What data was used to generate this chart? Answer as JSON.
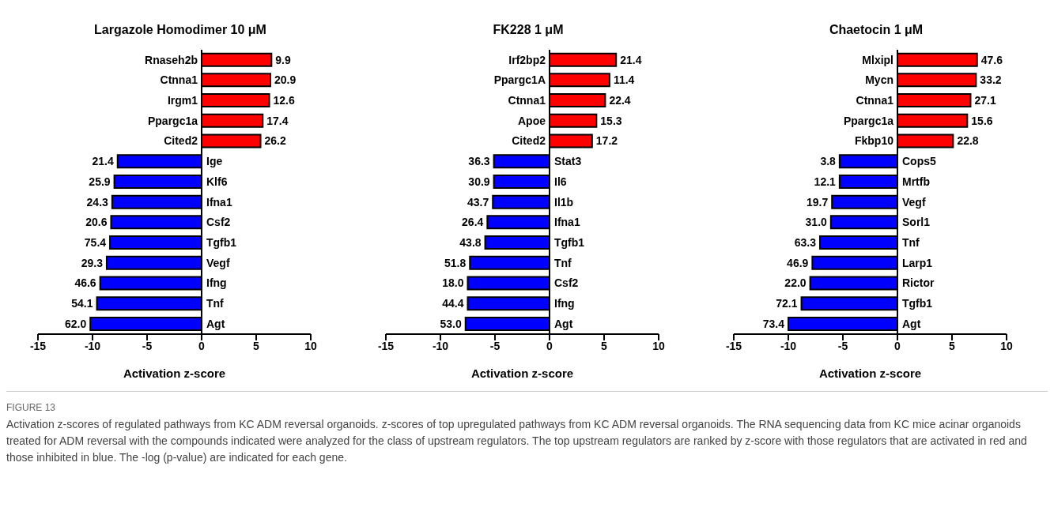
{
  "chart_data": [
    {
      "type": "bar",
      "orientation": "horizontal",
      "title": "Largazole Homodimer 10 μM",
      "xlabel": "Activation z-score",
      "xlim": [
        -15,
        10
      ],
      "xticks": [
        -15,
        -10,
        -5,
        0,
        5,
        10
      ],
      "categories": [
        "Rnaseh2b",
        "Ctnna1",
        "Irgm1",
        "Ppargc1a",
        "Cited2",
        "Ige",
        "Klf6",
        "Ifna1",
        "Csf2",
        "Tgfb1",
        "Vegf",
        "Ifng",
        "Tnf",
        "Agt"
      ],
      "values": [
        6.4,
        6.3,
        6.2,
        5.6,
        5.4,
        -7.7,
        -8.0,
        -8.2,
        -8.3,
        -8.4,
        -8.7,
        -9.3,
        -9.6,
        -10.2
      ],
      "colors": [
        "#ff0000",
        "#ff0000",
        "#ff0000",
        "#ff0000",
        "#ff0000",
        "#0000ff",
        "#0000ff",
        "#0000ff",
        "#0000ff",
        "#0000ff",
        "#0000ff",
        "#0000ff",
        "#0000ff",
        "#0000ff"
      ],
      "annotations": [
        "FIGURE 13",
        "Activation z-scores of regulated pathways from KC ADM reversal organoids. z-scores of top upregulated pathways from KC ADM reversal organoids. The RNA sequencing data from KC mice acinar organoids treated for ADM reversal with the compounds indicated were analyzed for the class of upstream regulators. The top upstream regulators are ranked by z-score with those regulators that are activated in red and those inhibited in blue. The -log (p-value) are indicated for each gene.",
        {
          "text": "9.9",
          "x": 6.4,
          "y": "Rnaseh2b"
        },
        {
          "text": "20.9",
          "x": 6.3,
          "y": "Ctnna1"
        },
        {
          "text": "12.6",
          "x": 6.2,
          "y": "Irgm1"
        },
        {
          "text": "17.4",
          "x": 5.6,
          "y": "Ppargc1a"
        },
        {
          "text": "26.2",
          "x": 5.4,
          "y": "Cited2"
        },
        {
          "text": "21.4",
          "x": -7.7,
          "y": "Ige"
        },
        {
          "text": "25.9",
          "x": -8.0,
          "y": "Klf6"
        },
        {
          "text": "24.3",
          "x": -8.2,
          "y": "Ifna1"
        },
        {
          "text": "20.6",
          "x": -8.3,
          "y": "Csf2"
        },
        {
          "text": "75.4",
          "x": -8.4,
          "y": "Tgfb1"
        },
        {
          "text": "29.3",
          "x": -8.7,
          "y": "Vegf"
        },
        {
          "text": "46.6",
          "x": -9.3,
          "y": "Ifng"
        },
        {
          "text": "54.1",
          "x": -9.6,
          "y": "Tnf"
        },
        {
          "text": "62.0",
          "x": -10.2,
          "y": "Agt"
        }
      ]
    },
    {
      "type": "bar",
      "orientation": "horizontal",
      "title": "FK228 1 μM",
      "xlabel": "Activation z-score",
      "xlim": [
        -15,
        10
      ],
      "xticks": [
        -15,
        -10,
        -5,
        0,
        5,
        10
      ],
      "categories": [
        "Irf2bp2",
        "Ppargc1A",
        "Ctnna1",
        "Apoe",
        "Cited2",
        "Stat3",
        "Il6",
        "Il1b",
        "Ifna1",
        "Tgfb1",
        "Tnf",
        "Csf2",
        "Ifng",
        "Agt"
      ],
      "values": [
        6.1,
        5.5,
        5.1,
        4.3,
        3.9,
        -5.1,
        -5.1,
        -5.2,
        -5.7,
        -5.9,
        -7.3,
        -7.5,
        -7.5,
        -7.7
      ],
      "colors": [
        "#ff0000",
        "#ff0000",
        "#ff0000",
        "#ff0000",
        "#ff0000",
        "#0000ff",
        "#0000ff",
        "#0000ff",
        "#0000ff",
        "#0000ff",
        "#0000ff",
        "#0000ff",
        "#0000ff",
        "#0000ff"
      ],
      "annotations": [
        {
          "text": "21.4",
          "x": 6.1,
          "y": "Irf2bp2"
        },
        {
          "text": "11.4",
          "x": 5.5,
          "y": "Ppargc1A"
        },
        {
          "text": "22.4",
          "x": 5.1,
          "y": "Ctnna1"
        },
        {
          "text": "15.3",
          "x": 4.3,
          "y": "Apoe"
        },
        {
          "text": "17.2",
          "x": 3.9,
          "y": "Cited2"
        },
        {
          "text": "36.3",
          "x": -5.1,
          "y": "Stat3"
        },
        {
          "text": "30.9",
          "x": -5.1,
          "y": "Il6"
        },
        {
          "text": "43.7",
          "x": -5.2,
          "y": "Il1b"
        },
        {
          "text": "26.4",
          "x": -5.7,
          "y": "Ifna1"
        },
        {
          "text": "43.8",
          "x": -5.9,
          "y": "Tgfb1"
        },
        {
          "text": "51.8",
          "x": -7.3,
          "y": "Tnf"
        },
        {
          "text": "18.0",
          "x": -7.5,
          "y": "Csf2"
        },
        {
          "text": "44.4",
          "x": -7.5,
          "y": "Ifng"
        },
        {
          "text": "53.0",
          "x": -7.7,
          "y": "Agt"
        }
      ]
    },
    {
      "type": "bar",
      "orientation": "horizontal",
      "title": "Chaetocin 1 μM",
      "xlabel": "Activation z-score",
      "xlim": [
        -15,
        10
      ],
      "xticks": [
        -15,
        -10,
        -5,
        0,
        5,
        10
      ],
      "categories": [
        "Mlxipl",
        "Mycn",
        "Ctnna1",
        "Ppargc1a",
        "Fkbp10",
        "Cops5",
        "Mrtfb",
        "Vegf",
        "Sorl1",
        "Tnf",
        "Larp1",
        "Rictor",
        "Tgfb1",
        "Agt"
      ],
      "values": [
        7.3,
        7.2,
        6.7,
        6.4,
        5.1,
        -5.3,
        -5.3,
        -6.0,
        -6.1,
        -7.1,
        -7.8,
        -8.0,
        -8.8,
        -10.0
      ],
      "colors": [
        "#ff0000",
        "#ff0000",
        "#ff0000",
        "#ff0000",
        "#ff0000",
        "#0000ff",
        "#0000ff",
        "#0000ff",
        "#0000ff",
        "#0000ff",
        "#0000ff",
        "#0000ff",
        "#0000ff",
        "#0000ff"
      ],
      "annotations": [
        {
          "text": "47.6",
          "x": 7.3,
          "y": "Mlxipl"
        },
        {
          "text": "33.2",
          "x": 7.2,
          "y": "Mycn"
        },
        {
          "text": "27.1",
          "x": 6.7,
          "y": "Ctnna1"
        },
        {
          "text": "15.6",
          "x": 6.4,
          "y": "Ppargc1a"
        },
        {
          "text": "22.8",
          "x": 5.1,
          "y": "Fkbp10"
        },
        {
          "text": "3.8",
          "x": -5.3,
          "y": "Cops5"
        },
        {
          "text": "12.1",
          "x": -5.3,
          "y": "Mrtfb"
        },
        {
          "text": "19.7",
          "x": -6.0,
          "y": "Vegf"
        },
        {
          "text": "31.0",
          "x": -6.1,
          "y": "Sorl1"
        },
        {
          "text": "63.3",
          "x": -7.1,
          "y": "Tnf"
        },
        {
          "text": "46.9",
          "x": -7.8,
          "y": "Larp1"
        },
        {
          "text": "22.0",
          "x": -8.0,
          "y": "Rictor"
        },
        {
          "text": "72.1",
          "x": -8.8,
          "y": "Tgfb1"
        },
        {
          "text": "73.4",
          "x": -10.0,
          "y": "Agt"
        }
      ]
    }
  ]
}
